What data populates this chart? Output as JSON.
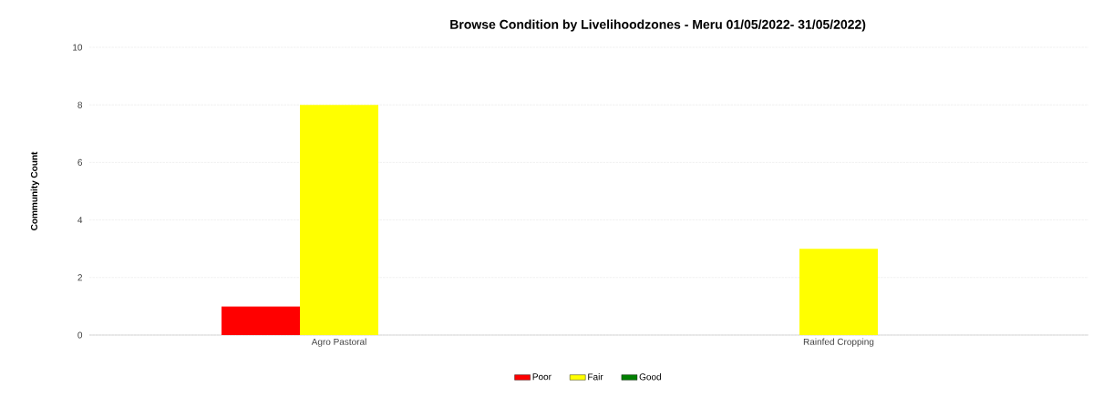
{
  "chart_data": {
    "type": "bar",
    "title": "Browse Condition by Livelihoodzones - Meru 01/05/2022- 31/05/2022)",
    "ylabel": "Community Count",
    "categories": [
      "Agro Pastoral",
      "Rainfed Cropping"
    ],
    "series": [
      {
        "name": "Poor",
        "color": "#ff0000",
        "values": [
          1,
          0
        ]
      },
      {
        "name": "Fair",
        "color": "#ffff00",
        "values": [
          8,
          3
        ]
      },
      {
        "name": "Good",
        "color": "#008000",
        "values": [
          0,
          0
        ]
      }
    ],
    "ylim": [
      0,
      10
    ],
    "yticks": [
      0,
      2,
      4,
      6,
      8,
      10
    ],
    "grid": "y",
    "legend": "bottom"
  }
}
